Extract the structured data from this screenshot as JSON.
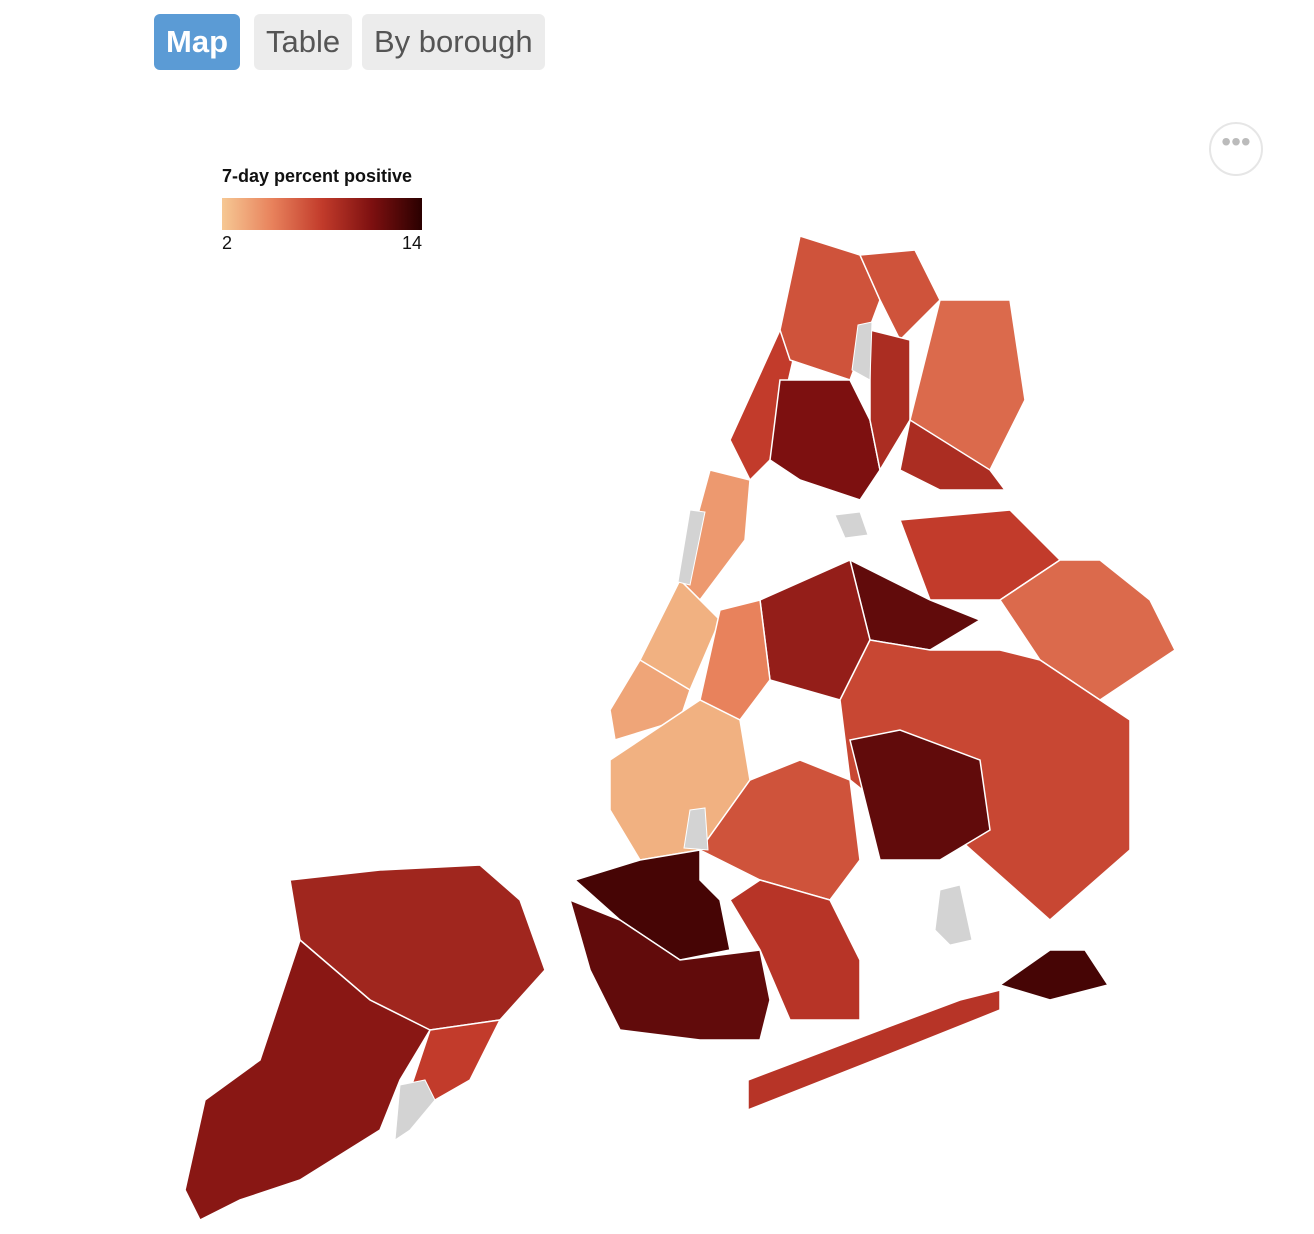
{
  "tabs": [
    "Map",
    "Table",
    "By borough"
  ],
  "legend": {
    "title": "7-day percent positive",
    "min": 2,
    "max": 14
  },
  "map": {
    "regions": [
      8,
      4,
      3,
      3.5,
      7,
      7,
      6,
      11,
      9,
      9,
      8,
      12,
      6,
      10,
      7.5,
      12,
      5,
      3,
      7,
      13,
      12,
      8.5,
      9.5,
      10.5,
      8,
      8.5,
      13
    ]
  }
}
